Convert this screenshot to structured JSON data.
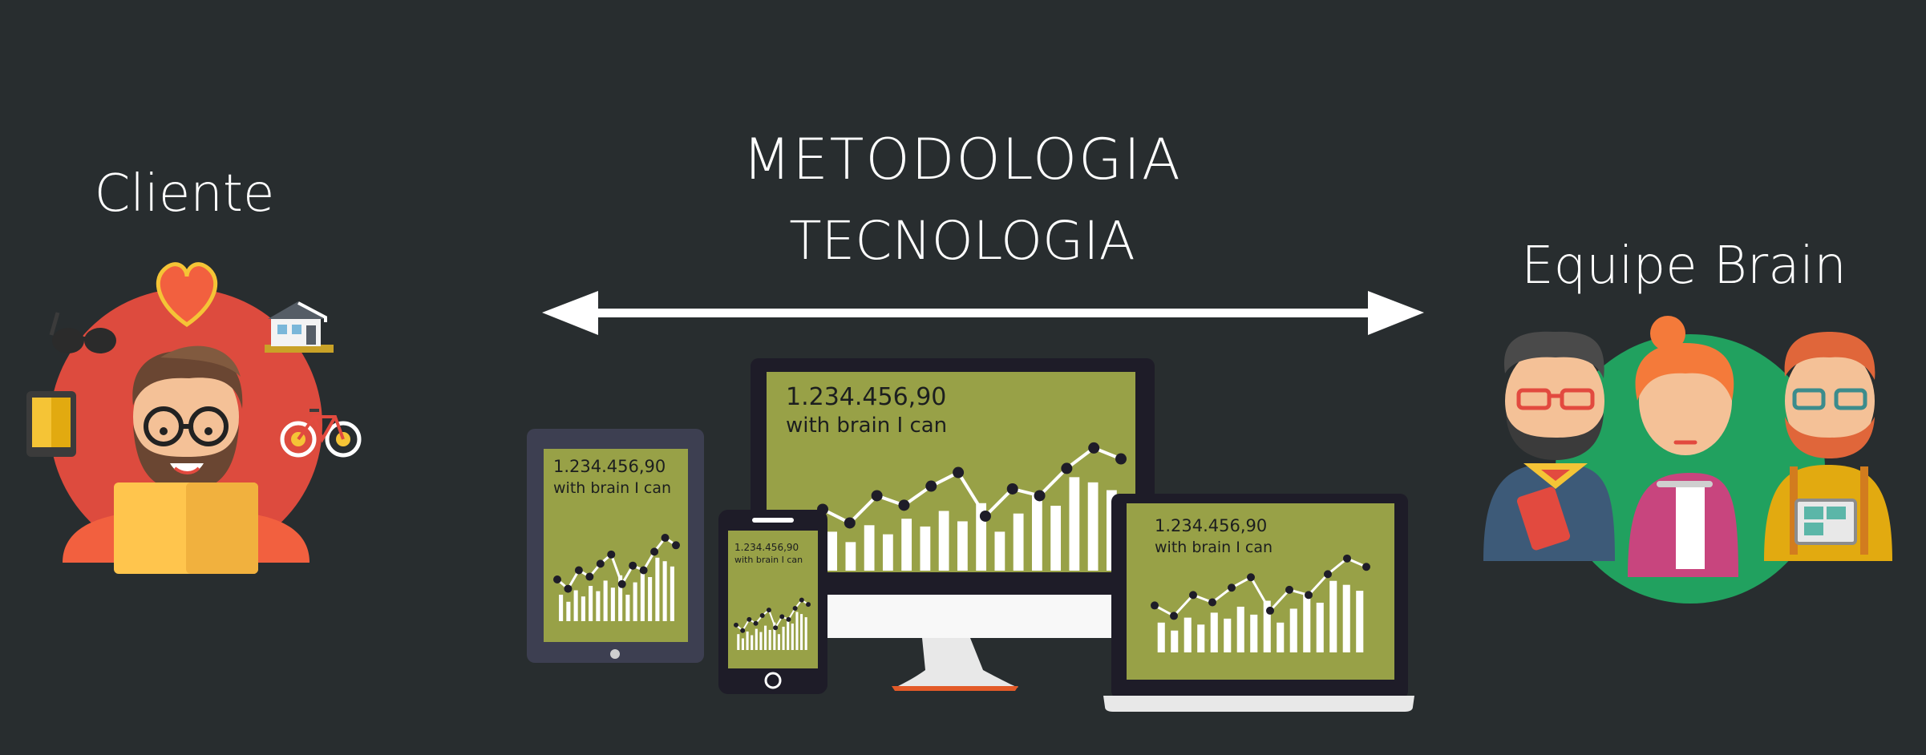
{
  "labels": {
    "client": "Cliente",
    "methodology": "METODOLOGIA",
    "technology": "TECNOLOGIA",
    "team": "Equipe Brain"
  },
  "screens": {
    "monitor": {
      "value": "1.234.456,90",
      "caption": "with brain I can"
    },
    "tablet": {
      "value": "1.234.456,90",
      "caption": "with brain I can"
    },
    "phone": {
      "value": "1.234.456,90",
      "caption": "with brain I can"
    },
    "laptop": {
      "value": "1.234.456,90",
      "caption": "with brain I can"
    }
  },
  "icons": [
    "sunglasses-icon",
    "heart-icon",
    "house-icon",
    "tablet-icon",
    "bicycle-icon",
    "laptop-icon",
    "double-arrow-icon"
  ],
  "colors": {
    "background": "#282d2f",
    "client_circle": "#dd4b3e",
    "team_circle": "#21a15f",
    "screen": "#98a147",
    "device_frame": "#1e1c28"
  }
}
